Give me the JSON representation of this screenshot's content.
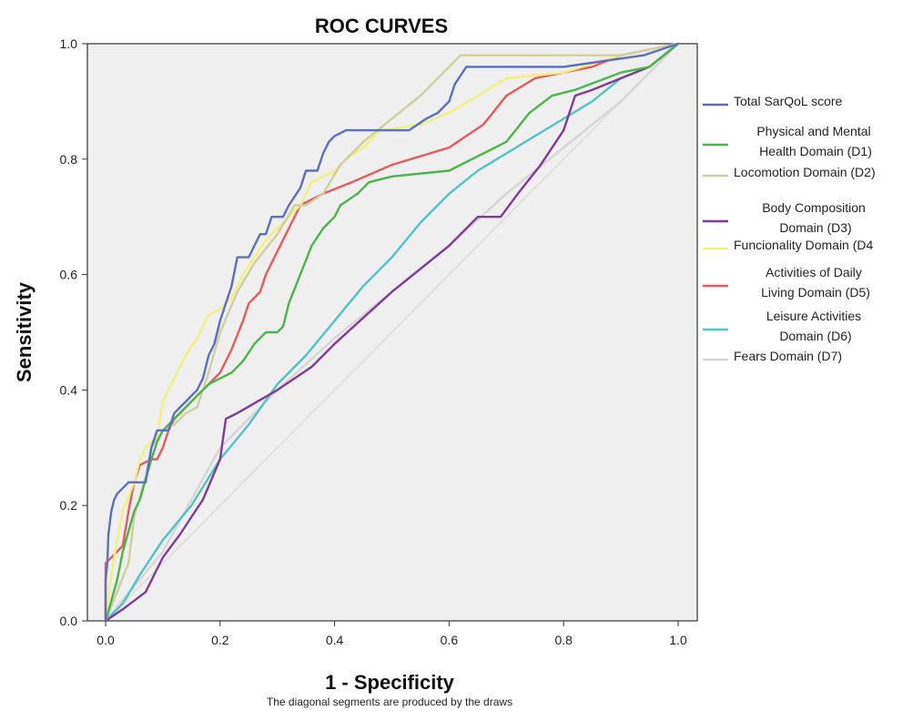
{
  "chart_data": {
    "type": "line",
    "title": "ROC CURVES",
    "xlabel": "1 - Specificity",
    "ylabel": "Sensitivity",
    "note": "The diagonal segments are produced by the draws",
    "xlim": [
      0,
      1
    ],
    "ylim": [
      0,
      1
    ],
    "xticks": [
      "0.0",
      "0.2",
      "0.4",
      "0.6",
      "0.8",
      "1.0"
    ],
    "yticks": [
      "0.0",
      "0.2",
      "0.4",
      "0.6",
      "0.8",
      "1.0"
    ],
    "plot_background": "#efefef",
    "legend_position": "right",
    "series": [
      {
        "name": "Total SarQoL score",
        "legend_label": [
          "Total SarQoL score"
        ],
        "color": "#5b6fc0",
        "points": [
          [
            0,
            0
          ],
          [
            0,
            0.07
          ],
          [
            0.003,
            0.1
          ],
          [
            0.005,
            0.15
          ],
          [
            0.01,
            0.19
          ],
          [
            0.015,
            0.21
          ],
          [
            0.02,
            0.22
          ],
          [
            0.03,
            0.23
          ],
          [
            0.04,
            0.24
          ],
          [
            0.05,
            0.24
          ],
          [
            0.07,
            0.24
          ],
          [
            0.08,
            0.3
          ],
          [
            0.09,
            0.33
          ],
          [
            0.1,
            0.33
          ],
          [
            0.11,
            0.33
          ],
          [
            0.12,
            0.36
          ],
          [
            0.13,
            0.37
          ],
          [
            0.14,
            0.38
          ],
          [
            0.15,
            0.39
          ],
          [
            0.16,
            0.4
          ],
          [
            0.17,
            0.42
          ],
          [
            0.18,
            0.46
          ],
          [
            0.19,
            0.48
          ],
          [
            0.2,
            0.52
          ],
          [
            0.21,
            0.55
          ],
          [
            0.22,
            0.58
          ],
          [
            0.23,
            0.63
          ],
          [
            0.25,
            0.63
          ],
          [
            0.26,
            0.65
          ],
          [
            0.27,
            0.67
          ],
          [
            0.28,
            0.67
          ],
          [
            0.29,
            0.7
          ],
          [
            0.31,
            0.7
          ],
          [
            0.32,
            0.72
          ],
          [
            0.34,
            0.75
          ],
          [
            0.35,
            0.78
          ],
          [
            0.37,
            0.78
          ],
          [
            0.38,
            0.81
          ],
          [
            0.39,
            0.83
          ],
          [
            0.4,
            0.84
          ],
          [
            0.42,
            0.85
          ],
          [
            0.5,
            0.85
          ],
          [
            0.53,
            0.85
          ],
          [
            0.56,
            0.87
          ],
          [
            0.58,
            0.88
          ],
          [
            0.6,
            0.9
          ],
          [
            0.61,
            0.93
          ],
          [
            0.63,
            0.96
          ],
          [
            0.66,
            0.96
          ],
          [
            0.8,
            0.96
          ],
          [
            0.94,
            0.98
          ],
          [
            1,
            1
          ]
        ]
      },
      {
        "name": "Physical and Mental Health Domain (D1)",
        "legend_label": [
          "Physical and Mental",
          "Health Domain (D1)"
        ],
        "color": "#4ab54a",
        "points": [
          [
            0,
            0
          ],
          [
            0.02,
            0.07
          ],
          [
            0.03,
            0.12
          ],
          [
            0.05,
            0.19
          ],
          [
            0.06,
            0.21
          ],
          [
            0.08,
            0.28
          ],
          [
            0.09,
            0.31
          ],
          [
            0.1,
            0.33
          ],
          [
            0.12,
            0.35
          ],
          [
            0.14,
            0.37
          ],
          [
            0.16,
            0.39
          ],
          [
            0.18,
            0.41
          ],
          [
            0.2,
            0.42
          ],
          [
            0.22,
            0.43
          ],
          [
            0.24,
            0.45
          ],
          [
            0.26,
            0.48
          ],
          [
            0.28,
            0.5
          ],
          [
            0.3,
            0.5
          ],
          [
            0.31,
            0.51
          ],
          [
            0.32,
            0.55
          ],
          [
            0.34,
            0.6
          ],
          [
            0.36,
            0.65
          ],
          [
            0.38,
            0.68
          ],
          [
            0.4,
            0.7
          ],
          [
            0.41,
            0.72
          ],
          [
            0.44,
            0.74
          ],
          [
            0.46,
            0.76
          ],
          [
            0.5,
            0.77
          ],
          [
            0.6,
            0.78
          ],
          [
            0.66,
            0.81
          ],
          [
            0.7,
            0.83
          ],
          [
            0.74,
            0.88
          ],
          [
            0.78,
            0.91
          ],
          [
            0.82,
            0.92
          ],
          [
            0.9,
            0.95
          ],
          [
            0.95,
            0.96
          ],
          [
            1,
            1
          ]
        ]
      },
      {
        "name": "Locomotion Domain (D2)",
        "legend_label": [
          "Locomotion Domain (D2)"
        ],
        "color": "#cfcf9e",
        "points": [
          [
            0,
            0
          ],
          [
            0.02,
            0.05
          ],
          [
            0.04,
            0.1
          ],
          [
            0.05,
            0.18
          ],
          [
            0.07,
            0.25
          ],
          [
            0.08,
            0.3
          ],
          [
            0.1,
            0.33
          ],
          [
            0.12,
            0.34
          ],
          [
            0.14,
            0.36
          ],
          [
            0.16,
            0.37
          ],
          [
            0.18,
            0.43
          ],
          [
            0.2,
            0.5
          ],
          [
            0.23,
            0.57
          ],
          [
            0.26,
            0.62
          ],
          [
            0.3,
            0.67
          ],
          [
            0.33,
            0.72
          ],
          [
            0.35,
            0.72
          ],
          [
            0.38,
            0.74
          ],
          [
            0.41,
            0.79
          ],
          [
            0.45,
            0.83
          ],
          [
            0.5,
            0.87
          ],
          [
            0.55,
            0.91
          ],
          [
            0.59,
            0.95
          ],
          [
            0.62,
            0.98
          ],
          [
            0.65,
            0.98
          ],
          [
            0.8,
            0.98
          ],
          [
            0.9,
            0.98
          ],
          [
            1,
            1
          ]
        ]
      },
      {
        "name": "Body Composition Domain (D3)",
        "legend_label": [
          "Body Composition",
          "Domain (D3)"
        ],
        "color": "#7e3c96",
        "points": [
          [
            0,
            0
          ],
          [
            0.03,
            0.02
          ],
          [
            0.07,
            0.05
          ],
          [
            0.1,
            0.11
          ],
          [
            0.13,
            0.15
          ],
          [
            0.15,
            0.18
          ],
          [
            0.17,
            0.21
          ],
          [
            0.2,
            0.28
          ],
          [
            0.21,
            0.35
          ],
          [
            0.23,
            0.36
          ],
          [
            0.3,
            0.4
          ],
          [
            0.36,
            0.44
          ],
          [
            0.4,
            0.48
          ],
          [
            0.5,
            0.57
          ],
          [
            0.6,
            0.65
          ],
          [
            0.65,
            0.7
          ],
          [
            0.69,
            0.7
          ],
          [
            0.72,
            0.74
          ],
          [
            0.76,
            0.79
          ],
          [
            0.8,
            0.85
          ],
          [
            0.82,
            0.91
          ],
          [
            0.85,
            0.92
          ],
          [
            0.9,
            0.94
          ],
          [
            0.95,
            0.96
          ],
          [
            1,
            1
          ]
        ]
      },
      {
        "name": "Funcionality Domain (D4",
        "legend_label": [
          "Funcionality Domain (D4"
        ],
        "color": "#f2f07a",
        "points": [
          [
            0,
            0
          ],
          [
            0.01,
            0.08
          ],
          [
            0.02,
            0.14
          ],
          [
            0.03,
            0.19
          ],
          [
            0.05,
            0.24
          ],
          [
            0.06,
            0.28
          ],
          [
            0.07,
            0.3
          ],
          [
            0.09,
            0.32
          ],
          [
            0.1,
            0.38
          ],
          [
            0.12,
            0.42
          ],
          [
            0.14,
            0.46
          ],
          [
            0.16,
            0.49
          ],
          [
            0.18,
            0.53
          ],
          [
            0.2,
            0.54
          ],
          [
            0.22,
            0.56
          ],
          [
            0.24,
            0.6
          ],
          [
            0.26,
            0.63
          ],
          [
            0.28,
            0.66
          ],
          [
            0.31,
            0.69
          ],
          [
            0.34,
            0.72
          ],
          [
            0.36,
            0.76
          ],
          [
            0.38,
            0.77
          ],
          [
            0.4,
            0.78
          ],
          [
            0.42,
            0.8
          ],
          [
            0.45,
            0.82
          ],
          [
            0.48,
            0.85
          ],
          [
            0.55,
            0.86
          ],
          [
            0.6,
            0.88
          ],
          [
            0.65,
            0.91
          ],
          [
            0.7,
            0.94
          ],
          [
            0.8,
            0.95
          ],
          [
            0.9,
            0.98
          ],
          [
            1,
            1
          ]
        ]
      },
      {
        "name": "Activities of Daily Living Domain (D5)",
        "legend_label": [
          "Activities of Daily",
          "Living Domain (D5)"
        ],
        "color": "#e8595d",
        "points": [
          [
            0,
            0
          ],
          [
            0,
            0.1
          ],
          [
            0.01,
            0.11
          ],
          [
            0.03,
            0.13
          ],
          [
            0.04,
            0.19
          ],
          [
            0.05,
            0.24
          ],
          [
            0.06,
            0.27
          ],
          [
            0.08,
            0.28
          ],
          [
            0.09,
            0.28
          ],
          [
            0.1,
            0.3
          ],
          [
            0.11,
            0.33
          ],
          [
            0.12,
            0.35
          ],
          [
            0.14,
            0.37
          ],
          [
            0.16,
            0.39
          ],
          [
            0.18,
            0.41
          ],
          [
            0.2,
            0.43
          ],
          [
            0.22,
            0.47
          ],
          [
            0.24,
            0.52
          ],
          [
            0.25,
            0.55
          ],
          [
            0.27,
            0.57
          ],
          [
            0.28,
            0.6
          ],
          [
            0.3,
            0.64
          ],
          [
            0.32,
            0.68
          ],
          [
            0.34,
            0.72
          ],
          [
            0.38,
            0.74
          ],
          [
            0.43,
            0.76
          ],
          [
            0.5,
            0.79
          ],
          [
            0.6,
            0.82
          ],
          [
            0.66,
            0.86
          ],
          [
            0.7,
            0.91
          ],
          [
            0.75,
            0.94
          ],
          [
            0.8,
            0.95
          ],
          [
            0.85,
            0.96
          ],
          [
            0.9,
            0.98
          ],
          [
            1,
            1
          ]
        ]
      },
      {
        "name": "Leisure Activities Domain (D6)",
        "legend_label": [
          "Leisure Activities",
          "Domain (D6)"
        ],
        "color": "#4fc3c6",
        "points": [
          [
            0,
            0
          ],
          [
            0.03,
            0.03
          ],
          [
            0.06,
            0.08
          ],
          [
            0.1,
            0.14
          ],
          [
            0.15,
            0.2
          ],
          [
            0.2,
            0.28
          ],
          [
            0.25,
            0.34
          ],
          [
            0.3,
            0.41
          ],
          [
            0.35,
            0.46
          ],
          [
            0.4,
            0.52
          ],
          [
            0.45,
            0.58
          ],
          [
            0.5,
            0.63
          ],
          [
            0.55,
            0.69
          ],
          [
            0.6,
            0.74
          ],
          [
            0.65,
            0.78
          ],
          [
            0.7,
            0.81
          ],
          [
            0.75,
            0.84
          ],
          [
            0.8,
            0.87
          ],
          [
            0.85,
            0.9
          ],
          [
            0.9,
            0.94
          ],
          [
            0.95,
            0.96
          ],
          [
            1,
            1
          ]
        ]
      },
      {
        "name": "Fears Domain (D7)",
        "legend_label": [
          "Fears Domain (D7)"
        ],
        "color": "#d6d6d6",
        "points": [
          [
            0,
            0
          ],
          [
            0.1,
            0.12
          ],
          [
            0.2,
            0.3
          ],
          [
            0.3,
            0.4
          ],
          [
            0.4,
            0.49
          ],
          [
            0.5,
            0.57
          ],
          [
            0.6,
            0.65
          ],
          [
            0.7,
            0.74
          ],
          [
            0.8,
            0.82
          ],
          [
            0.9,
            0.9
          ],
          [
            1,
            1
          ]
        ]
      }
    ]
  }
}
